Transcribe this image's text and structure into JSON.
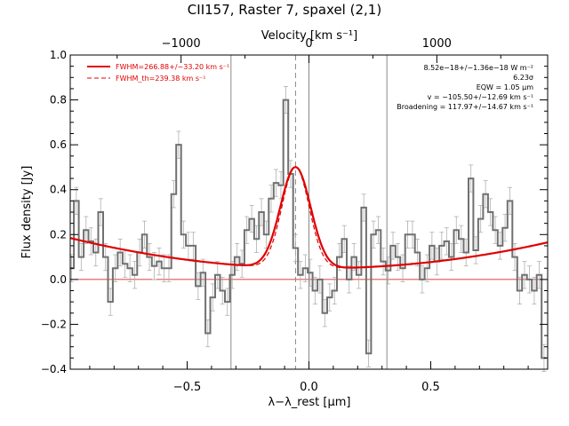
{
  "chart_data": {
    "type": "line",
    "title": "CII157, Raster 7, spaxel (2,1)",
    "xlabel": "λ−λ_rest [μm]",
    "x2label": "Velocity [km s⁻¹]",
    "ylabel": "Flux density [Jy]",
    "xlim": [
      -0.98,
      0.98
    ],
    "ylim": [
      -0.4,
      1.0
    ],
    "x_ticks": [
      -0.5,
      0.0,
      0.5
    ],
    "x_tick_labels": [
      "−0.5",
      "0.0",
      "0.5"
    ],
    "x2_ticks_um": [
      -0.525,
      0.0,
      0.525
    ],
    "x2_tick_labels": [
      "−1000",
      "0",
      "1000"
    ],
    "y_ticks": [
      -0.4,
      -0.2,
      0.0,
      0.2,
      0.4,
      0.6,
      0.8,
      1.0
    ],
    "y_tick_labels": [
      "−0.4",
      "−0.2",
      "0.0",
      "0.2",
      "0.4",
      "0.6",
      "0.8",
      "1.0"
    ],
    "vertical_lines": [
      -0.32,
      0.0,
      0.32
    ],
    "line_center": -0.055,
    "legend": [
      {
        "label": "FWHM=266.88+/−33.20 km s⁻¹",
        "style": "solid",
        "color": "#e00000"
      },
      {
        "label": "FWHM_th=239.38 km s⁻¹",
        "style": "dashed",
        "color": "#e00000"
      }
    ],
    "annotations": [
      "8.52e−18+/−1.36e−18 W m⁻²",
      "6.23σ",
      "EQW = 1.05 μm",
      "v = −105.50+/−12.69 km s⁻¹",
      "Broadening = 117.97+/−14.67 km s⁻¹"
    ],
    "series": [
      {
        "kind": "spectrum",
        "color": "#707070",
        "x": [
          -0.975,
          -0.955,
          -0.935,
          -0.915,
          -0.895,
          -0.875,
          -0.855,
          -0.835,
          -0.815,
          -0.795,
          -0.775,
          -0.755,
          -0.735,
          -0.715,
          -0.695,
          -0.675,
          -0.655,
          -0.635,
          -0.615,
          -0.595,
          -0.575,
          -0.555,
          -0.535,
          -0.515,
          -0.495,
          -0.475,
          -0.455,
          -0.435,
          -0.415,
          -0.395,
          -0.375,
          -0.355,
          -0.335,
          -0.315,
          -0.295,
          -0.275,
          -0.255,
          -0.235,
          -0.215,
          -0.195,
          -0.175,
          -0.155,
          -0.135,
          -0.115,
          -0.095,
          -0.075,
          -0.055,
          -0.035,
          -0.015,
          0.005,
          0.025,
          0.045,
          0.065,
          0.085,
          0.105,
          0.125,
          0.145,
          0.165,
          0.185,
          0.205,
          0.225,
          0.245,
          0.265,
          0.285,
          0.305,
          0.325,
          0.345,
          0.365,
          0.385,
          0.405,
          0.425,
          0.445,
          0.465,
          0.485,
          0.505,
          0.525,
          0.545,
          0.565,
          0.585,
          0.605,
          0.625,
          0.645,
          0.665,
          0.685,
          0.705,
          0.725,
          0.745,
          0.765,
          0.785,
          0.805,
          0.825,
          0.845,
          0.865,
          0.885,
          0.905,
          0.925,
          0.945,
          0.965
        ],
        "y": [
          0.05,
          0.35,
          0.1,
          0.22,
          0.17,
          0.12,
          0.3,
          0.1,
          -0.1,
          0.05,
          0.12,
          0.07,
          0.05,
          0.02,
          0.12,
          0.2,
          0.1,
          0.06,
          0.08,
          0.05,
          0.05,
          0.38,
          0.6,
          0.2,
          0.15,
          0.15,
          -0.03,
          0.03,
          -0.24,
          -0.08,
          0.02,
          -0.05,
          -0.1,
          0.02,
          0.1,
          0.07,
          0.22,
          0.27,
          0.18,
          0.3,
          0.2,
          0.36,
          0.43,
          0.42,
          0.8,
          0.47,
          0.14,
          0.02,
          0.05,
          0.03,
          -0.05,
          0.0,
          -0.15,
          -0.08,
          -0.05,
          0.1,
          0.18,
          0.0,
          0.1,
          0.02,
          0.32,
          -0.33,
          0.2,
          0.22,
          0.08,
          0.04,
          0.15,
          0.1,
          0.05,
          0.2,
          0.2,
          0.12,
          0.0,
          0.05,
          0.15,
          0.08,
          0.15,
          0.17,
          0.1,
          0.22,
          0.18,
          0.12,
          0.45,
          0.13,
          0.27,
          0.38,
          0.3,
          0.22,
          0.15,
          0.23,
          0.35,
          0.1,
          -0.05,
          0.02,
          0.0,
          -0.05,
          0.02,
          -0.35
        ],
        "err": 0.06
      },
      {
        "kind": "fit",
        "color": "#e00000",
        "description_params": {
          "continuum": [
            0.05,
            -0.01,
            0.13
          ],
          "amplitude": 0.45,
          "center": -0.055,
          "sigma": 0.062
        }
      },
      {
        "kind": "thermal_fit",
        "color": "#e00000",
        "description_params": {
          "amplitude": 0.45,
          "center": -0.055,
          "sigma": 0.056
        }
      }
    ]
  }
}
